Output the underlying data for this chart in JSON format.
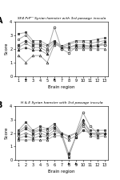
{
  "title_A": "SF4 PrPʳʳʳ Syrian hamster with 3rd passage inocula",
  "title_B": "H & E Syrian hamster with 3rd passage inocula",
  "xlabel": "Brain region",
  "ylabel": "Score",
  "xlim": [
    0.5,
    13.5
  ],
  "ylim_A": [
    0,
    4
  ],
  "ylim_B": [
    0,
    4
  ],
  "xticks": [
    1,
    2,
    3,
    4,
    5,
    6,
    7,
    8,
    9,
    10,
    11,
    12,
    13
  ],
  "yticks": [
    0,
    1,
    2,
    3,
    4
  ],
  "arrow_A": [
    2,
    6
  ],
  "arrow_B": [
    8,
    9
  ],
  "lines_A": [
    [
      3.1,
      3.2,
      2.6,
      2.6,
      2.3,
      2.6,
      2.2,
      2.4,
      2.6,
      2.6,
      2.6,
      2.7,
      2.8
    ],
    [
      2.7,
      3.0,
      2.4,
      2.4,
      2.2,
      2.6,
      2.1,
      2.3,
      2.5,
      2.5,
      2.4,
      2.5,
      2.6
    ],
    [
      2.3,
      2.6,
      2.3,
      2.3,
      2.0,
      2.5,
      2.0,
      2.1,
      2.3,
      2.3,
      2.2,
      2.3,
      2.3
    ],
    [
      2.1,
      2.4,
      2.1,
      2.1,
      1.8,
      3.6,
      2.0,
      1.7,
      2.1,
      2.1,
      2.1,
      2.2,
      2.3
    ],
    [
      1.9,
      2.1,
      1.9,
      1.9,
      1.6,
      2.4,
      2.1,
      2.1,
      2.2,
      2.2,
      2.2,
      2.2,
      2.5
    ],
    [
      1.5,
      1.0,
      1.5,
      1.5,
      1.0,
      2.3,
      2.2,
      2.0,
      2.0,
      2.0,
      2.0,
      2.0,
      2.0
    ]
  ],
  "lines_B": [
    [
      2.2,
      2.8,
      2.2,
      2.5,
      2.3,
      2.7,
      2.0,
      0.2,
      1.8,
      2.8,
      2.2,
      2.2,
      2.2
    ],
    [
      2.1,
      2.5,
      2.1,
      2.3,
      2.2,
      2.5,
      1.8,
      0.3,
      1.7,
      2.5,
      2.0,
      2.0,
      2.0
    ],
    [
      2.0,
      2.3,
      2.0,
      2.2,
      2.0,
      2.4,
      2.0,
      0.5,
      1.7,
      2.2,
      2.0,
      1.9,
      2.0
    ],
    [
      1.8,
      2.0,
      1.8,
      2.0,
      1.8,
      2.2,
      2.0,
      1.7,
      2.0,
      3.5,
      2.5,
      2.0,
      2.0
    ],
    [
      1.6,
      1.8,
      1.6,
      1.8,
      1.7,
      2.0,
      2.0,
      1.8,
      2.0,
      3.0,
      2.0,
      1.8,
      2.0
    ],
    [
      1.5,
      1.5,
      1.5,
      1.5,
      1.5,
      1.8,
      1.8,
      1.5,
      1.8,
      2.7,
      1.8,
      1.7,
      1.8
    ]
  ],
  "line_styles": [
    {
      "color": "#aaaaaa",
      "marker": "s",
      "mfc": "#555555",
      "lw": 0.7
    },
    {
      "color": "#aaaaaa",
      "marker": "s",
      "mfc": "white",
      "lw": 0.7
    },
    {
      "color": "#aaaaaa",
      "marker": "o",
      "mfc": "#555555",
      "lw": 0.7
    },
    {
      "color": "#aaaaaa",
      "marker": "o",
      "mfc": "white",
      "lw": 0.7
    },
    {
      "color": "#aaaaaa",
      "marker": "^",
      "mfc": "#555555",
      "lw": 0.7
    },
    {
      "color": "#aaaaaa",
      "marker": "^",
      "mfc": "white",
      "lw": 0.7
    }
  ],
  "markersize": 2.0
}
